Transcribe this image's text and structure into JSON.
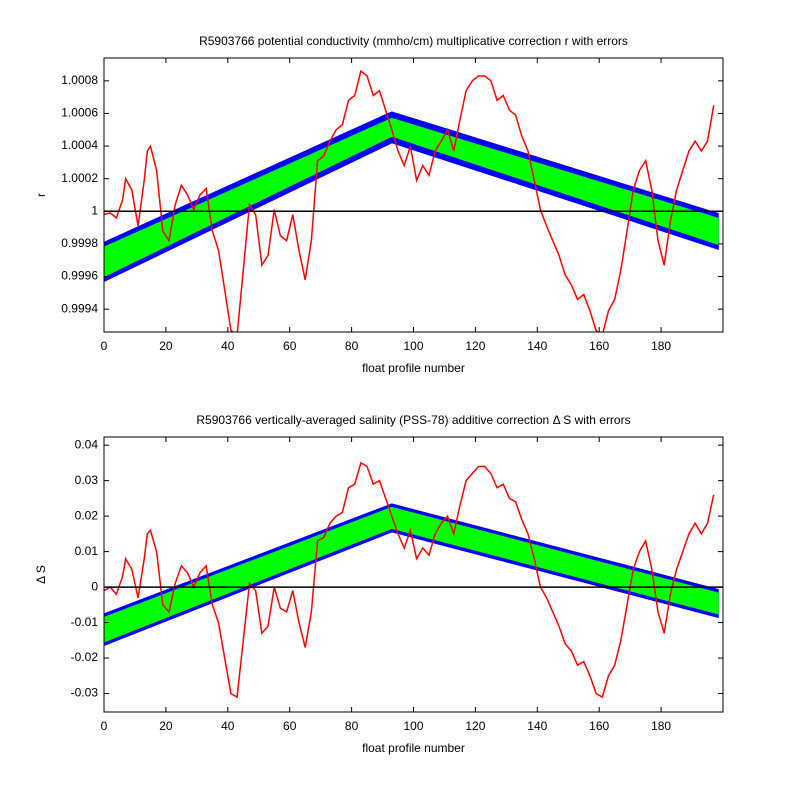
{
  "chart_data": [
    {
      "type": "line",
      "title": "R5903766 potential conductivity (mmho/cm) multiplicative correction r with errors",
      "xlabel": "float profile number",
      "ylabel": "r",
      "xlim": [
        0,
        200
      ],
      "xticks": [
        0,
        20,
        40,
        60,
        80,
        100,
        120,
        140,
        160,
        180
      ],
      "ylim": [
        0.99926,
        1.00094
      ],
      "yticks": [
        0.9994,
        0.9996,
        0.9998,
        1,
        1.0002,
        1.0004,
        1.0006,
        1.0008
      ],
      "hline": 1,
      "hline_color": "#000000",
      "series": [
        {
          "color": "#0000ff",
          "x": [
            0,
            93,
            198
          ],
          "values": [
            0.9998,
            1.0006,
            0.99998
          ],
          "lower": [
            0.99958,
            1.00043,
            0.99978
          ]
        },
        {
          "color": "#00ff00",
          "x": [
            0,
            93,
            198
          ],
          "values": [
            0.99977,
            1.00056,
            0.99995
          ],
          "lower": [
            0.99961,
            1.00047,
            0.99981
          ]
        },
        {
          "color": "#ff0000",
          "x": [
            0,
            2,
            4,
            6,
            7,
            9,
            11,
            13,
            14,
            15,
            17,
            19,
            21,
            23,
            25,
            27,
            29,
            31,
            33,
            35,
            37,
            39,
            41,
            43,
            45,
            47,
            49,
            51,
            53,
            55,
            57,
            59,
            61,
            63,
            65,
            67,
            69,
            71,
            73,
            75,
            77,
            79,
            81,
            83,
            85,
            87,
            89,
            91,
            93,
            95,
            97,
            99,
            101,
            103,
            105,
            107,
            109,
            111,
            113,
            115,
            117,
            119,
            121,
            123,
            125,
            127,
            129,
            131,
            133,
            135,
            137,
            139,
            141,
            143,
            145,
            147,
            149,
            151,
            153,
            155,
            157,
            159,
            161,
            163,
            165,
            167,
            169,
            171,
            173,
            175,
            177,
            179,
            181,
            183,
            185,
            187,
            189,
            191,
            193,
            195,
            197
          ],
          "values": [
            0.99998,
            0.99999,
            0.99996,
            1.00007,
            1.0002,
            1.00013,
            0.99991,
            1.00019,
            1.00037,
            1.0004,
            1.00025,
            0.99988,
            0.99982,
            1.00004,
            1.00016,
            1.0001,
            1.00001,
            1.0001,
            1.00014,
            0.99988,
            0.99976,
            0.99952,
            0.99927,
            0.99924,
            0.99964,
            1.00004,
            0.99998,
            0.99967,
            0.99973,
            1.00001,
            0.99985,
            0.99982,
            0.99998,
            0.99976,
            0.99958,
            0.99982,
            1.00031,
            1.00034,
            1.00043,
            1.0005,
            1.00053,
            1.00068,
            1.00071,
            1.00086,
            1.00083,
            1.00071,
            1.00074,
            1.00062,
            1.0005,
            1.00037,
            1.00028,
            1.0004,
            1.00019,
            1.00028,
            1.00022,
            1.00037,
            1.00043,
            1.0005,
            1.00037,
            1.00056,
            1.00074,
            1.0008,
            1.00083,
            1.00083,
            1.0008,
            1.00068,
            1.00071,
            1.00062,
            1.00059,
            1.00046,
            1.00037,
            1.00019,
            1.00001,
            0.99991,
            0.99982,
            0.99973,
            0.99961,
            0.99955,
            0.99946,
            0.99949,
            0.99939,
            0.99927,
            0.99924,
            0.99939,
            0.99946,
            0.99964,
            0.99988,
            1.00013,
            1.00025,
            1.00031,
            1.00013,
            0.99982,
            0.99967,
            0.99994,
            1.00013,
            1.00025,
            1.00037,
            1.00043,
            1.00037,
            1.00043,
            1.00065
          ]
        }
      ]
    },
    {
      "type": "line",
      "title": "R5903766 vertically-averaged salinity (PSS-78) additive correction Δ S with errors",
      "xlabel": "float profile number",
      "ylabel": "Δ S",
      "xlim": [
        0,
        200
      ],
      "xticks": [
        0,
        20,
        40,
        60,
        80,
        100,
        120,
        140,
        160,
        180
      ],
      "ylim": [
        -0.0352,
        0.0423
      ],
      "yticks": [
        -0.03,
        -0.02,
        -0.01,
        0,
        0.01,
        0.02,
        0.03,
        0.04
      ],
      "hline": 0,
      "hline_color": "#000000",
      "series": [
        {
          "color": "#0000ff",
          "x": [
            0,
            93,
            198
          ],
          "values": [
            -0.008,
            0.023,
            -0.001
          ],
          "lower": [
            -0.016,
            0.016,
            -0.008
          ]
        },
        {
          "color": "#00ff00",
          "x": [
            0,
            93,
            198
          ],
          "values": [
            -0.009,
            0.022,
            -0.002
          ],
          "lower": [
            -0.015,
            0.017,
            -0.007
          ]
        },
        {
          "color": "#ff0000",
          "x": [
            0,
            2,
            4,
            6,
            7,
            9,
            11,
            13,
            14,
            15,
            17,
            19,
            21,
            23,
            25,
            27,
            29,
            31,
            33,
            35,
            37,
            39,
            41,
            43,
            45,
            47,
            49,
            51,
            53,
            55,
            57,
            59,
            61,
            63,
            65,
            67,
            69,
            71,
            73,
            75,
            77,
            79,
            81,
            83,
            85,
            87,
            89,
            91,
            93,
            95,
            97,
            99,
            101,
            103,
            105,
            107,
            109,
            111,
            113,
            115,
            117,
            119,
            121,
            123,
            125,
            127,
            129,
            131,
            133,
            135,
            137,
            139,
            141,
            143,
            145,
            147,
            149,
            151,
            153,
            155,
            157,
            159,
            161,
            163,
            165,
            167,
            169,
            171,
            173,
            175,
            177,
            179,
            181,
            183,
            185,
            187,
            189,
            191,
            193,
            195,
            197
          ],
          "values": [
            -0.001,
            0,
            -0.002,
            0.003,
            0.008,
            0.005,
            -0.003,
            0.008,
            0.015,
            0.016,
            0.01,
            -0.005,
            -0.007,
            0.001,
            0.006,
            0.004,
            0,
            0.004,
            0.006,
            -0.005,
            -0.01,
            -0.02,
            -0.03,
            -0.031,
            -0.015,
            0.001,
            -0.001,
            -0.013,
            -0.011,
            0,
            -0.006,
            -0.007,
            -0.001,
            -0.01,
            -0.017,
            -0.007,
            0.013,
            0.014,
            0.018,
            0.02,
            0.021,
            0.028,
            0.029,
            0.035,
            0.034,
            0.029,
            0.03,
            0.025,
            0.02,
            0.015,
            0.011,
            0.016,
            0.008,
            0.011,
            0.009,
            0.015,
            0.018,
            0.02,
            0.015,
            0.023,
            0.03,
            0.032,
            0.034,
            0.034,
            0.032,
            0.028,
            0.029,
            0.025,
            0.024,
            0.019,
            0.015,
            0.008,
            0,
            -0.003,
            -0.007,
            -0.011,
            -0.016,
            -0.018,
            -0.022,
            -0.021,
            -0.025,
            -0.03,
            -0.031,
            -0.025,
            -0.022,
            -0.015,
            -0.005,
            0.005,
            0.01,
            0.013,
            0.005,
            -0.007,
            -0.013,
            -0.002,
            0.005,
            0.01,
            0.015,
            0.018,
            0.015,
            0.018,
            0.026
          ]
        }
      ]
    }
  ]
}
